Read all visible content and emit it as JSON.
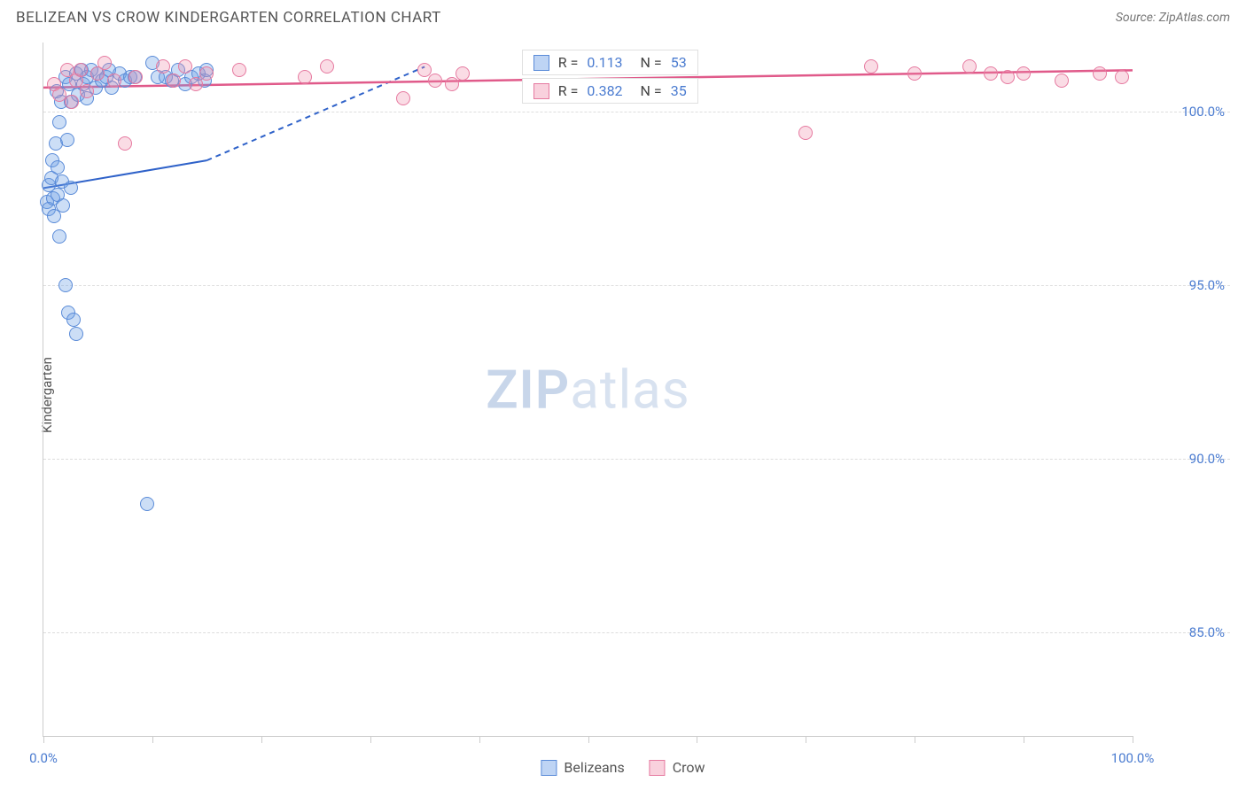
{
  "header": {
    "title": "BELIZEAN VS CROW KINDERGARTEN CORRELATION CHART",
    "source": "Source: ZipAtlas.com"
  },
  "ylabel": "Kindergarten",
  "watermark": {
    "bold": "ZIP",
    "rest": "atlas"
  },
  "chart": {
    "type": "scatter",
    "xlim": [
      0,
      100
    ],
    "ylim": [
      82,
      102
    ],
    "x_ticks": [
      0,
      10,
      20,
      30,
      40,
      50,
      60,
      70,
      80,
      90,
      100
    ],
    "x_tick_labels": {
      "0": "0.0%",
      "100": "100.0%"
    },
    "y_gridlines": [
      85,
      90,
      95,
      100
    ],
    "y_tick_labels": {
      "85": "85.0%",
      "90": "90.0%",
      "95": "95.0%",
      "100": "100.0%"
    },
    "grid_color": "#dddddd",
    "background_color": "#ffffff",
    "axis_color": "#cccccc",
    "label_color": "#4a7bd0",
    "series": [
      {
        "name": "Belizeans",
        "color_fill": "rgba(110,160,230,0.35)",
        "color_stroke": "#5a8bd8",
        "marker_size": 16,
        "trend": {
          "solid": {
            "x1": 0,
            "y1": 97.8,
            "x2": 15,
            "y2": 98.6
          },
          "dashed": {
            "x1": 15,
            "y1": 98.6,
            "x2": 35,
            "y2": 101.3
          },
          "stroke": "#2f62c9",
          "width": 2
        },
        "points": [
          [
            0.3,
            97.4
          ],
          [
            0.5,
            97.9
          ],
          [
            0.5,
            97.2
          ],
          [
            0.7,
            98.1
          ],
          [
            0.8,
            98.6
          ],
          [
            0.9,
            97.5
          ],
          [
            1.0,
            97.0
          ],
          [
            1.1,
            99.1
          ],
          [
            1.2,
            100.6
          ],
          [
            1.3,
            98.4
          ],
          [
            1.3,
            97.6
          ],
          [
            1.5,
            99.7
          ],
          [
            1.5,
            96.4
          ],
          [
            1.6,
            100.3
          ],
          [
            1.7,
            98.0
          ],
          [
            1.8,
            97.3
          ],
          [
            2.0,
            101.0
          ],
          [
            2.0,
            95.0
          ],
          [
            2.2,
            99.2
          ],
          [
            2.3,
            94.2
          ],
          [
            2.4,
            100.8
          ],
          [
            2.5,
            100.3
          ],
          [
            2.5,
            97.8
          ],
          [
            2.8,
            94.0
          ],
          [
            3.0,
            101.1
          ],
          [
            3.0,
            93.6
          ],
          [
            3.2,
            100.5
          ],
          [
            3.5,
            101.2
          ],
          [
            3.7,
            100.8
          ],
          [
            4.0,
            101.0
          ],
          [
            4.0,
            100.4
          ],
          [
            4.4,
            101.2
          ],
          [
            4.8,
            100.7
          ],
          [
            5.0,
            101.1
          ],
          [
            5.4,
            100.9
          ],
          [
            5.8,
            101.0
          ],
          [
            6.0,
            101.2
          ],
          [
            6.3,
            100.7
          ],
          [
            7.0,
            101.1
          ],
          [
            7.5,
            100.9
          ],
          [
            8.0,
            101.0
          ],
          [
            8.4,
            101.0
          ],
          [
            9.5,
            88.7
          ],
          [
            10.0,
            101.4
          ],
          [
            10.5,
            101.0
          ],
          [
            11.2,
            101.0
          ],
          [
            11.8,
            100.9
          ],
          [
            12.4,
            101.2
          ],
          [
            13.0,
            100.8
          ],
          [
            13.6,
            101.0
          ],
          [
            14.2,
            101.1
          ],
          [
            14.8,
            100.9
          ],
          [
            15.0,
            101.2
          ]
        ]
      },
      {
        "name": "Crow",
        "color_fill": "rgba(240,140,170,0.30)",
        "color_stroke": "#e67aa0",
        "marker_size": 16,
        "trend": {
          "solid": {
            "x1": 0,
            "y1": 100.7,
            "x2": 100,
            "y2": 101.2
          },
          "stroke": "#e05a8a",
          "width": 2.5
        },
        "points": [
          [
            1.0,
            100.8
          ],
          [
            1.5,
            100.5
          ],
          [
            2.2,
            101.2
          ],
          [
            2.6,
            100.3
          ],
          [
            3.0,
            100.9
          ],
          [
            3.4,
            101.2
          ],
          [
            4.0,
            100.6
          ],
          [
            5.0,
            101.1
          ],
          [
            5.6,
            101.4
          ],
          [
            6.5,
            100.9
          ],
          [
            7.5,
            99.1
          ],
          [
            8.5,
            101.0
          ],
          [
            11.0,
            101.3
          ],
          [
            12.0,
            100.9
          ],
          [
            13.0,
            101.3
          ],
          [
            14.0,
            100.8
          ],
          [
            15.0,
            101.1
          ],
          [
            18.0,
            101.2
          ],
          [
            24.0,
            101.0
          ],
          [
            26.0,
            101.3
          ],
          [
            33.0,
            100.4
          ],
          [
            35.0,
            101.2
          ],
          [
            36.0,
            100.9
          ],
          [
            37.5,
            100.8
          ],
          [
            38.5,
            101.1
          ],
          [
            70.0,
            99.4
          ],
          [
            76.0,
            101.3
          ],
          [
            80.0,
            101.1
          ],
          [
            85.0,
            101.3
          ],
          [
            87.0,
            101.1
          ],
          [
            88.5,
            101.0
          ],
          [
            90.0,
            101.1
          ],
          [
            93.5,
            100.9
          ],
          [
            97.0,
            101.1
          ],
          [
            99.0,
            101.0
          ]
        ]
      }
    ]
  },
  "stats": [
    {
      "series": "Belizeans",
      "swatch": "sw-blue",
      "R": "0.113",
      "N": "53"
    },
    {
      "series": "Crow",
      "swatch": "sw-pink",
      "R": "0.382",
      "N": "35"
    }
  ],
  "bottom_legend": [
    {
      "swatch": "sw-blue",
      "label": "Belizeans"
    },
    {
      "swatch": "sw-pink",
      "label": "Crow"
    }
  ]
}
